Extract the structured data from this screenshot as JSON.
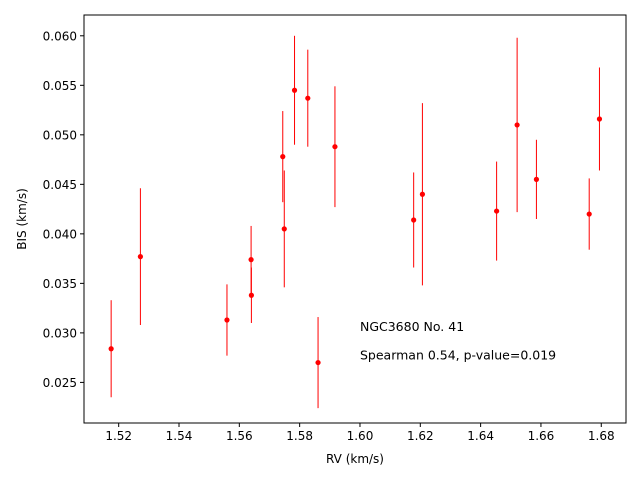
{
  "chart_data": {
    "type": "scatter",
    "xlabel": "RV (km/s)",
    "ylabel": "BIS (km/s)",
    "xlim": [
      1.5085,
      1.6882
    ],
    "ylim": [
      0.0209,
      0.0621
    ],
    "xticks": [
      1.52,
      1.54,
      1.56,
      1.58,
      1.6,
      1.62,
      1.64,
      1.66,
      1.68
    ],
    "xtick_labels": [
      "1.52",
      "1.54",
      "1.56",
      "1.58",
      "1.60",
      "1.62",
      "1.64",
      "1.66",
      "1.68"
    ],
    "yticks": [
      0.025,
      0.03,
      0.035,
      0.04,
      0.045,
      0.05,
      0.055,
      0.06
    ],
    "ytick_labels": [
      "0.025",
      "0.030",
      "0.035",
      "0.040",
      "0.045",
      "0.050",
      "0.055",
      "0.060"
    ],
    "marker_color": "#ff0000",
    "points": [
      {
        "x": 1.5175,
        "y": 0.0284,
        "err": 0.0049
      },
      {
        "x": 1.5272,
        "y": 0.0377,
        "err": 0.0069
      },
      {
        "x": 1.5559,
        "y": 0.0313,
        "err": 0.0036
      },
      {
        "x": 1.5639,
        "y": 0.0374,
        "err": 0.0034
      },
      {
        "x": 1.564,
        "y": 0.0338,
        "err": 0.0028
      },
      {
        "x": 1.5744,
        "y": 0.0478,
        "err": 0.0046
      },
      {
        "x": 1.5749,
        "y": 0.0405,
        "err": 0.0059
      },
      {
        "x": 1.5783,
        "y": 0.0545,
        "err": 0.0055
      },
      {
        "x": 1.5827,
        "y": 0.0537,
        "err": 0.0049
      },
      {
        "x": 1.5861,
        "y": 0.027,
        "err": 0.0046
      },
      {
        "x": 1.5917,
        "y": 0.0488,
        "err": 0.0061
      },
      {
        "x": 1.6178,
        "y": 0.0414,
        "err": 0.0048
      },
      {
        "x": 1.6207,
        "y": 0.044,
        "err": 0.0092
      },
      {
        "x": 1.6453,
        "y": 0.0423,
        "err": 0.005
      },
      {
        "x": 1.6521,
        "y": 0.051,
        "err": 0.0088
      },
      {
        "x": 1.6585,
        "y": 0.0455,
        "err": 0.004
      },
      {
        "x": 1.676,
        "y": 0.042,
        "err": 0.0036
      },
      {
        "x": 1.6794,
        "y": 0.0516,
        "err": 0.0052
      }
    ],
    "annotations": [
      {
        "text": "NGC3680 No. 41",
        "x": 1.6,
        "y": 0.0302
      },
      {
        "text": "Spearman 0.54, p-value=0.019",
        "x": 1.6,
        "y": 0.0273
      }
    ]
  }
}
